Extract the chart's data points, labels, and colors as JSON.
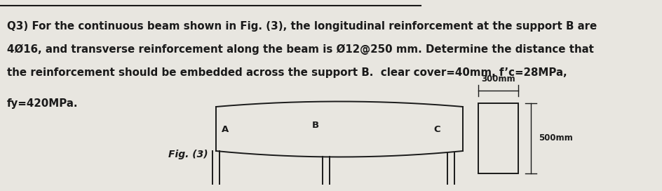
{
  "bg_color": "#e8e6e0",
  "line_color": "#1a1a1a",
  "text_color": "#1a1a1a",
  "line1": "Q3) For the continuous beam shown in Fig. (3), the longitudinal reinforcement at the support B are",
  "line2": "4Ø16, and transverse reinforcement along the beam is Ø12@250 mm. Determine the distance that",
  "line3": "the reinforcement should be embedded across the support B.  clear cover=40mm, f’c=28MPa,",
  "line4": "fy=420MPa.",
  "fig_label": "Fig. (3)",
  "label_A": "A",
  "label_B": "B",
  "label_C": "C",
  "dim_300": "300mm",
  "dim_500": "500mm",
  "font_size_main": 10.8,
  "font_size_fig": 10.0,
  "font_size_label": 9.5,
  "font_size_dim": 8.5
}
